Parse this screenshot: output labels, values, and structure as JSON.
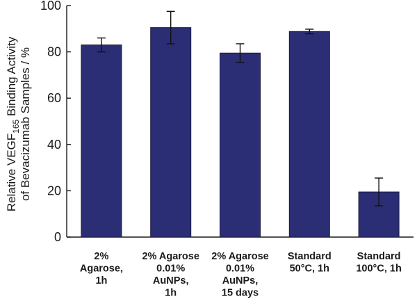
{
  "chart_data": {
    "type": "bar",
    "title": "",
    "xlabel": "",
    "ylabel_line1": "Relative VEGF",
    "ylabel_sub": "165",
    "ylabel_line1_rest": " Binding Activity",
    "ylabel_line2": "of Bevacizumab Samples / %",
    "ylim": [
      0,
      100
    ],
    "yticks": [
      "0",
      "20",
      "40",
      "60",
      "80",
      "100"
    ],
    "bar_color": "#2b2e74",
    "categories": [
      [
        "2%",
        "Agarose,",
        "1h"
      ],
      [
        "2% Agarose",
        "0.01%",
        "AuNPs,",
        "1h"
      ],
      [
        "2% Agarose",
        "0.01%",
        "AuNPs,",
        "15 days"
      ],
      [
        "Standard",
        "50°C, 1h"
      ],
      [
        "Standard",
        "100°C, 1h"
      ]
    ],
    "values": [
      83,
      90.5,
      79.5,
      88.8,
      19.5
    ],
    "errors": [
      3,
      7,
      4,
      1,
      6
    ]
  }
}
